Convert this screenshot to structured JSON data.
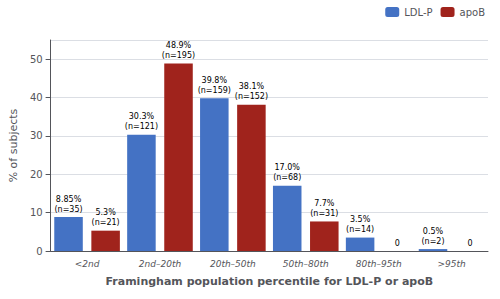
{
  "chart_data": {
    "type": "bar",
    "categories": [
      "<2nd",
      "2nd–20th",
      "20th–50th",
      "50th–80th",
      "80th–95th",
      ">95th"
    ],
    "series": [
      {
        "name": "LDL-P",
        "color": "#4472C4",
        "values": [
          8.85,
          30.3,
          39.8,
          17.0,
          3.5,
          0.5
        ],
        "value_labels": [
          "8.85%\n(n=35)",
          "30.3%\n(n=121)",
          "39.8%\n(n=159)",
          "17.0%\n(n=68)",
          "3.5%\n(n=14)",
          "0.5%\n(n=2)"
        ]
      },
      {
        "name": "apoB",
        "color": "#A0231C",
        "values": [
          5.3,
          48.9,
          38.1,
          7.7,
          0.0,
          0.0
        ],
        "value_labels": [
          "5.3%\n(n=21)",
          "48.9%\n(n=195)",
          "38.1%\n(n=152)",
          "7.7%\n(n=31)",
          "0",
          "0"
        ]
      }
    ],
    "xlabel": "Framingham population percentile for LDL-P or apoB",
    "ylabel": "% of subjects",
    "ylim": [
      0,
      55
    ],
    "yticks": [
      0,
      10,
      20,
      30,
      40,
      50
    ],
    "grid": true,
    "legend": "upper right",
    "data_labels": true
  }
}
